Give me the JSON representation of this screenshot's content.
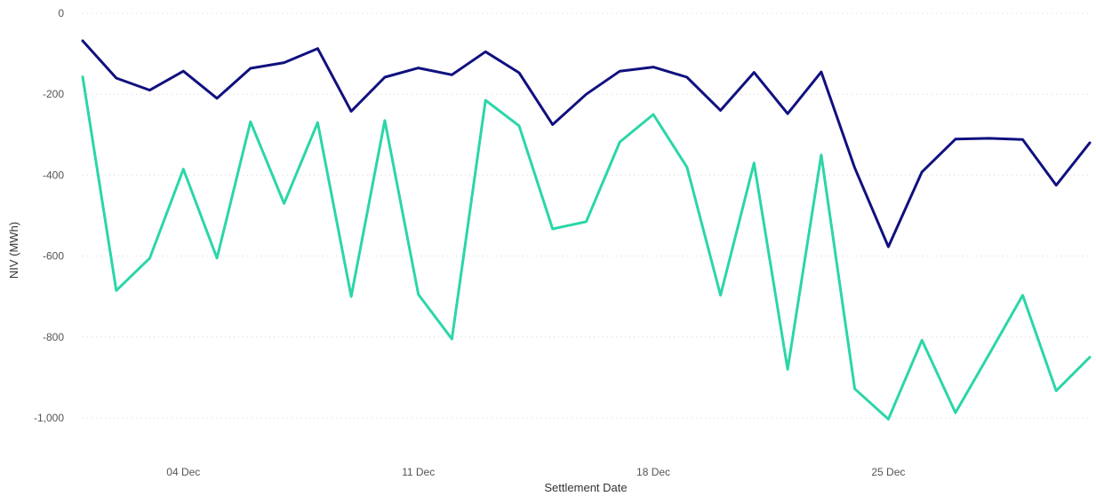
{
  "chart_data": {
    "type": "line",
    "xlabel": "Settlement Date",
    "ylabel": "NIV (MWh)",
    "ylim": [
      -1100,
      0
    ],
    "yticks": [
      0,
      -200,
      -400,
      -600,
      -800,
      -1000
    ],
    "ytick_labels": [
      "0",
      "-200",
      "-400",
      "-600",
      "-800",
      "-1,000"
    ],
    "x_start": "01 Dec",
    "x_end": "31 Dec",
    "xticks": [
      {
        "day": 4,
        "label": "04 Dec"
      },
      {
        "day": 11,
        "label": "11 Dec"
      },
      {
        "day": 18,
        "label": "18 Dec"
      },
      {
        "day": 25,
        "label": "25 Dec"
      }
    ],
    "grid": "horizontal dotted",
    "legend": "none",
    "series": [
      {
        "color": "#10107f",
        "x": [
          "01 Dec",
          "02 Dec",
          "03 Dec",
          "04 Dec",
          "05 Dec",
          "06 Dec",
          "07 Dec",
          "08 Dec",
          "09 Dec",
          "10 Dec",
          "11 Dec",
          "12 Dec",
          "13 Dec",
          "14 Dec",
          "15 Dec",
          "16 Dec",
          "17 Dec",
          "18 Dec",
          "19 Dec",
          "20 Dec",
          "21 Dec",
          "22 Dec",
          "23 Dec",
          "24 Dec",
          "25 Dec",
          "26 Dec",
          "27 Dec",
          "28 Dec",
          "29 Dec",
          "30 Dec",
          "31 Dec"
        ],
        "values": [
          -68,
          -160,
          -190,
          -143,
          -210,
          -136,
          -122,
          -87,
          -242,
          -158,
          -135,
          -152,
          -95,
          -147,
          -275,
          -200,
          -143,
          -133,
          -158,
          -240,
          -146,
          -248,
          -145,
          -382,
          -577,
          -392,
          -311,
          -309,
          -312,
          -425,
          -320
        ]
      },
      {
        "color": "#2bd6a8",
        "x": [
          "01 Dec",
          "02 Dec",
          "03 Dec",
          "04 Dec",
          "05 Dec",
          "06 Dec",
          "07 Dec",
          "08 Dec",
          "09 Dec",
          "10 Dec",
          "11 Dec",
          "12 Dec",
          "13 Dec",
          "14 Dec",
          "15 Dec",
          "16 Dec",
          "17 Dec",
          "18 Dec",
          "19 Dec",
          "20 Dec",
          "21 Dec",
          "22 Dec",
          "23 Dec",
          "24 Dec",
          "25 Dec",
          "26 Dec",
          "27 Dec",
          "28 Dec",
          "29 Dec",
          "30 Dec",
          "31 Dec"
        ],
        "values": [
          -157,
          -685,
          -605,
          -385,
          -605,
          -268,
          -470,
          -270,
          -700,
          -265,
          -695,
          -805,
          -215,
          -278,
          -533,
          -515,
          -318,
          -250,
          -380,
          -697,
          -370,
          -880,
          -350,
          -928,
          -1003,
          -808,
          -987,
          -843,
          -697,
          -933,
          -850
        ]
      }
    ]
  }
}
